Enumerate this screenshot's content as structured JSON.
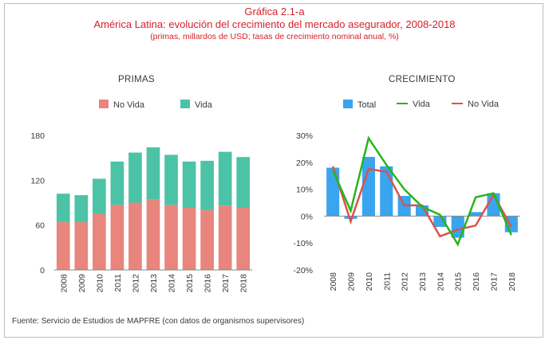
{
  "title": {
    "line1": "Gráfica 2.1-a",
    "line2": "América Latina: evolución del crecimiento del mercado asegurador, 2008-2018",
    "line3": "(primas, millardos de USD; tasas de crecimiento nominal anual, %)"
  },
  "source": "Fuente: Servicio de Estudios de MAPFRE (con datos de organismos supervisores)",
  "colors": {
    "title": "#d6202a",
    "no_vida_bar": "#e8857d",
    "vida_bar": "#4cc3a6",
    "total_bar": "#3aa4ef",
    "vida_line": "#27b51b",
    "no_vida_line": "#d9534f"
  },
  "chart_data": [
    {
      "type": "bar",
      "stacked": true,
      "title": "PRIMAS",
      "categories": [
        "2008",
        "2009",
        "2010",
        "2011",
        "2012",
        "2013",
        "2014",
        "2015",
        "2016",
        "2017",
        "2018"
      ],
      "series": [
        {
          "name": "No Vida",
          "values": [
            64,
            64,
            75,
            87,
            90,
            94,
            87,
            83,
            80,
            86,
            83
          ]
        },
        {
          "name": "Vida",
          "values": [
            38,
            36,
            47,
            58,
            67,
            70,
            67,
            62,
            66,
            72,
            68
          ]
        }
      ],
      "yticks": [
        "0",
        "60",
        "120",
        "180"
      ],
      "ylim": [
        0,
        180
      ],
      "legend": "top",
      "grid": false
    },
    {
      "type": "bar+line",
      "title": "CRECIMIENTO",
      "categories": [
        "2008",
        "2009",
        "2010",
        "2011",
        "2012",
        "2013",
        "2014",
        "2015",
        "2016",
        "2017",
        "2018"
      ],
      "series": [
        {
          "name": "Total",
          "kind": "bar",
          "values": [
            18,
            -1,
            22,
            18.5,
            7.5,
            4,
            -4,
            -8,
            1.5,
            8.5,
            -6
          ]
        },
        {
          "name": "Vida",
          "kind": "line",
          "values": [
            17,
            2,
            29,
            19,
            10,
            3.5,
            0.5,
            -10.5,
            7,
            8.5,
            -7
          ]
        },
        {
          "name": "No Vida",
          "kind": "line",
          "values": [
            18.5,
            -2,
            17.5,
            16.5,
            4,
            4,
            -7.5,
            -5,
            -3.5,
            8,
            -4
          ]
        }
      ],
      "yticks": [
        "-20%",
        "-10%",
        "0%",
        "10%",
        "20%",
        "30%"
      ],
      "ylim": [
        -20,
        30
      ],
      "legend": "top",
      "grid": false
    }
  ]
}
